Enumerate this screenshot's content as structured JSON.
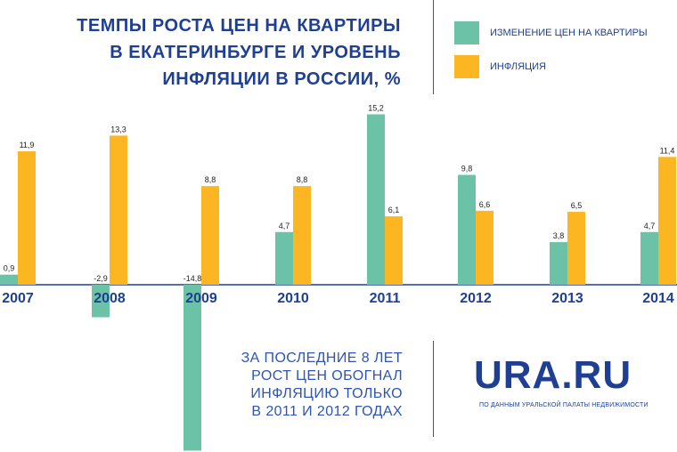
{
  "title_lines": [
    "ТЕМПЫ РОСТА ЦЕН НА КВАРТИРЫ",
    "В ЕКАТЕРИНБУРГЕ И УРОВЕНЬ",
    "ИНФЛЯЦИИ В РОССИИ, %"
  ],
  "legend": [
    {
      "label": "ИЗМЕНЕНИЕ ЦЕН НА КВАРТИРЫ",
      "color": "#6cc2a6"
    },
    {
      "label": "ИНФЛЯЦИЯ",
      "color": "#fbb622"
    }
  ],
  "note_lines": [
    "ЗА ПОСЛЕДНИЕ 8 ЛЕТ",
    "РОСТ ЦЕН ОБОГНАЛ",
    "ИНФЛЯЦИЮ ТОЛЬКО",
    "В 2011 И 2012 ГОДАХ"
  ],
  "logo": "URA.RU",
  "source": "ПО ДАННЫМ УРАЛЬСКОЙ ПАЛАТЫ НЕДВИЖИМОСТИ",
  "colors": {
    "accent": "#1f3f93",
    "green": "#6cc2a6",
    "yellow": "#fbb622"
  },
  "chart_data": {
    "type": "bar",
    "categories": [
      "2007",
      "2008",
      "2009",
      "2010",
      "2011",
      "2012",
      "2013",
      "2014"
    ],
    "series": [
      {
        "name": "ИЗМЕНЕНИЕ ЦЕН НА КВАРТИРЫ",
        "values": [
          0.9,
          -2.9,
          -14.8,
          4.7,
          15.2,
          9.8,
          3.8,
          4.7
        ],
        "labels": [
          "0,9",
          "-2,9",
          "-14,8",
          "4,7",
          "15,2",
          "9,8",
          "3,8",
          "4,7"
        ]
      },
      {
        "name": "ИНФЛЯЦИЯ",
        "values": [
          11.9,
          13.3,
          8.8,
          8.8,
          6.1,
          6.6,
          6.5,
          11.4
        ],
        "labels": [
          "11,9",
          "13,3",
          "8,8",
          "8,8",
          "6,1",
          "6,6",
          "6,5",
          "11,4"
        ]
      }
    ],
    "title": "ТЕМПЫ РОСТА ЦЕН НА КВАРТИРЫ В ЕКАТЕРИНБУРГЕ И УРОВЕНЬ ИНФЛЯЦИИ В РОССИИ, %",
    "xlabel": "",
    "ylabel": "",
    "grid": false,
    "legend_position": "top-right"
  }
}
